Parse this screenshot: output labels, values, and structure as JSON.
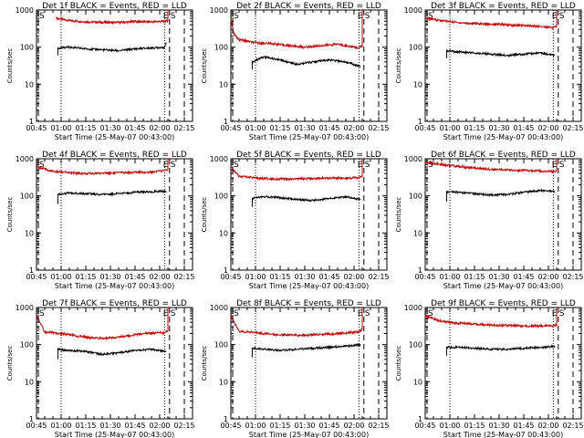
{
  "figure": {
    "background": "#ffffff",
    "events_color": "#000000",
    "lld_color": "#cc0000"
  },
  "chart_data": [
    {
      "type": "line",
      "title": "Det 1f BLACK = Events, RED = LLD",
      "xlabel": "Start Time (25-May-07 00:43:00)",
      "ylabel": "Counts/sec",
      "x_ticks": [
        "00:45",
        "01:00",
        "01:15",
        "01:30",
        "01:45",
        "02:00",
        "02:15"
      ],
      "y_ticks": [
        "1",
        "10",
        "100",
        "1000"
      ],
      "y_scale": "log",
      "ylim": [
        1,
        1000
      ],
      "markers": [
        "E",
        "S"
      ],
      "series": [
        {
          "name": "LLD",
          "color": "red",
          "x": [
            "00:57",
            "01:05",
            "01:15",
            "01:25",
            "01:35",
            "01:45",
            "01:55",
            "02:03",
            "02:05",
            "02:05"
          ],
          "y": [
            600,
            520,
            480,
            470,
            460,
            490,
            480,
            500,
            520,
            1000
          ]
        },
        {
          "name": "Events",
          "color": "black",
          "x": [
            "00:58",
            "00:58",
            "01:05",
            "01:15",
            "01:25",
            "01:35",
            "01:45",
            "01:55",
            "02:03",
            "02:04"
          ],
          "y": [
            60,
            95,
            100,
            90,
            85,
            80,
            90,
            95,
            100,
            135
          ]
        }
      ]
    },
    {
      "type": "line",
      "title": "Det 2f BLACK = Events, RED = LLD",
      "xlabel": "Start Time (25-May-07 00:43:00)",
      "ylabel": "Counts/sec",
      "x_ticks": [
        "00:45",
        "01:00",
        "01:15",
        "01:30",
        "01:45",
        "02:00",
        "02:15"
      ],
      "y_ticks": [
        "1",
        "10",
        "100",
        "1000"
      ],
      "y_scale": "log",
      "ylim": [
        1,
        1000
      ],
      "markers": [
        "E",
        "S"
      ],
      "series": [
        {
          "name": "LLD",
          "color": "red",
          "x": [
            "00:45",
            "00:47",
            "00:50",
            "01:00",
            "01:10",
            "01:20",
            "01:30",
            "01:40",
            "01:50",
            "02:03",
            "02:05",
            "02:05"
          ],
          "y": [
            600,
            220,
            160,
            130,
            125,
            110,
            100,
            110,
            120,
            95,
            110,
            1000
          ]
        },
        {
          "name": "Events",
          "color": "black",
          "x": [
            "00:58",
            "00:58",
            "01:05",
            "01:15",
            "01:25",
            "01:35",
            "01:45",
            "01:55",
            "02:04"
          ],
          "y": [
            25,
            40,
            55,
            45,
            35,
            40,
            45,
            40,
            30
          ]
        }
      ]
    },
    {
      "type": "line",
      "title": "Det 3f BLACK = Events, RED = LLD",
      "xlabel": "Start Time (25-May-07 00:43:00)",
      "ylabel": "Counts/sec",
      "x_ticks": [
        "00:45",
        "01:00",
        "01:15",
        "01:30",
        "01:45",
        "02:00",
        "02:15"
      ],
      "y_ticks": [
        "1",
        "10",
        "100",
        "1000"
      ],
      "y_scale": "log",
      "ylim": [
        1,
        1000
      ],
      "markers": [
        "E",
        "S"
      ],
      "series": [
        {
          "name": "LLD",
          "color": "red",
          "x": [
            "00:45",
            "00:55",
            "01:05",
            "01:15",
            "01:25",
            "01:35",
            "01:45",
            "01:55",
            "02:03",
            "02:05",
            "02:05"
          ],
          "y": [
            600,
            520,
            460,
            430,
            420,
            400,
            380,
            360,
            340,
            360,
            1000
          ]
        },
        {
          "name": "Events",
          "color": "black",
          "x": [
            "00:58",
            "00:58",
            "01:05",
            "01:15",
            "01:25",
            "01:35",
            "01:45",
            "01:55",
            "02:04"
          ],
          "y": [
            50,
            80,
            75,
            70,
            65,
            60,
            65,
            70,
            60
          ]
        }
      ]
    },
    {
      "type": "line",
      "title": "Det 4f BLACK = Events, RED = LLD",
      "xlabel": "Start Time (25-May-07 00:43:00)",
      "ylabel": "Counts/sec",
      "x_ticks": [
        "00:45",
        "01:00",
        "01:15",
        "01:30",
        "01:45",
        "02:00",
        "02:15"
      ],
      "y_ticks": [
        "1",
        "10",
        "100",
        "1000"
      ],
      "y_scale": "log",
      "ylim": [
        1,
        1000
      ],
      "markers": [
        "E",
        "S"
      ],
      "series": [
        {
          "name": "LLD",
          "color": "red",
          "x": [
            "00:45",
            "00:55",
            "01:05",
            "01:15",
            "01:25",
            "01:35",
            "01:45",
            "01:55",
            "02:03",
            "02:05",
            "02:05"
          ],
          "y": [
            620,
            450,
            420,
            400,
            410,
            420,
            430,
            440,
            480,
            520,
            1000
          ]
        },
        {
          "name": "Events",
          "color": "black",
          "x": [
            "00:58",
            "00:58",
            "01:05",
            "01:15",
            "01:25",
            "01:35",
            "01:45",
            "01:55",
            "02:04"
          ],
          "y": [
            60,
            110,
            120,
            115,
            110,
            115,
            125,
            130,
            135
          ]
        }
      ]
    },
    {
      "type": "line",
      "title": "Det 5f BLACK = Events, RED = LLD",
      "xlabel": "Start Time (25-May-07 00:43:00)",
      "ylabel": "Counts/sec",
      "x_ticks": [
        "00:45",
        "01:00",
        "01:15",
        "01:30",
        "01:45",
        "02:00",
        "02:15"
      ],
      "y_ticks": [
        "1",
        "10",
        "100",
        "1000"
      ],
      "y_scale": "log",
      "ylim": [
        1,
        1000
      ],
      "markers": [
        "E",
        "S"
      ],
      "series": [
        {
          "name": "LLD",
          "color": "red",
          "x": [
            "00:45",
            "00:50",
            "01:00",
            "01:10",
            "01:20",
            "01:30",
            "01:40",
            "01:50",
            "02:03",
            "02:05",
            "02:05"
          ],
          "y": [
            600,
            340,
            300,
            290,
            280,
            290,
            300,
            300,
            310,
            330,
            1000
          ]
        },
        {
          "name": "Events",
          "color": "black",
          "x": [
            "00:58",
            "00:58",
            "01:05",
            "01:15",
            "01:25",
            "01:35",
            "01:45",
            "01:55",
            "02:04"
          ],
          "y": [
            50,
            85,
            95,
            90,
            80,
            75,
            85,
            95,
            80
          ]
        }
      ]
    },
    {
      "type": "line",
      "title": "Det 6f BLACK = Events, RED = LLD",
      "xlabel": "Start Time (25-May-07 00:43:00)",
      "ylabel": "Counts/sec",
      "x_ticks": [
        "00:45",
        "01:00",
        "01:15",
        "01:30",
        "01:45",
        "02:00",
        "02:15"
      ],
      "y_ticks": [
        "1",
        "10",
        "100",
        "1000"
      ],
      "y_scale": "log",
      "ylim": [
        1,
        1000
      ],
      "markers": [
        "E",
        "S"
      ],
      "series": [
        {
          "name": "LLD",
          "color": "red",
          "x": [
            "00:45",
            "00:55",
            "01:05",
            "01:15",
            "01:25",
            "01:35",
            "01:45",
            "01:55",
            "02:03",
            "02:05",
            "02:05"
          ],
          "y": [
            800,
            700,
            620,
            560,
            520,
            500,
            480,
            470,
            450,
            480,
            1000
          ]
        },
        {
          "name": "Events",
          "color": "black",
          "x": [
            "00:58",
            "00:58",
            "01:05",
            "01:15",
            "01:25",
            "01:35",
            "01:45",
            "01:55",
            "02:04"
          ],
          "y": [
            70,
            130,
            125,
            115,
            105,
            110,
            125,
            140,
            130
          ]
        }
      ]
    },
    {
      "type": "line",
      "title": "Det 7f BLACK = Events, RED = LLD",
      "xlabel": "Start Time (25-May-07 00:43:00)",
      "ylabel": "Counts/sec",
      "x_ticks": [
        "00:45",
        "01:00",
        "01:15",
        "01:30",
        "01:45",
        "02:00",
        "02:15"
      ],
      "y_ticks": [
        "1",
        "10",
        "100",
        "1000"
      ],
      "y_scale": "log",
      "ylim": [
        1,
        1000
      ],
      "markers": [
        "E",
        "S"
      ],
      "series": [
        {
          "name": "LLD",
          "color": "red",
          "x": [
            "00:45",
            "00:50",
            "01:00",
            "01:10",
            "01:20",
            "01:30",
            "01:40",
            "01:50",
            "02:03",
            "02:05",
            "02:05"
          ],
          "y": [
            600,
            220,
            200,
            170,
            150,
            150,
            170,
            200,
            210,
            230,
            1000
          ]
        },
        {
          "name": "Events",
          "color": "black",
          "x": [
            "00:58",
            "00:58",
            "01:05",
            "01:15",
            "01:25",
            "01:35",
            "01:45",
            "01:55",
            "02:04"
          ],
          "y": [
            40,
            75,
            70,
            65,
            55,
            60,
            70,
            75,
            65
          ]
        }
      ]
    },
    {
      "type": "line",
      "title": "Det 8f BLACK = Events, RED = LLD",
      "xlabel": "Start Time (25-May-07 00:43:00)",
      "ylabel": "Counts/sec",
      "x_ticks": [
        "00:45",
        "01:00",
        "01:15",
        "01:30",
        "01:45",
        "02:00",
        "02:15"
      ],
      "y_ticks": [
        "1",
        "10",
        "100",
        "1000"
      ],
      "y_scale": "log",
      "ylim": [
        1,
        1000
      ],
      "markers": [
        "E",
        "S"
      ],
      "series": [
        {
          "name": "LLD",
          "color": "red",
          "x": [
            "00:45",
            "00:50",
            "01:00",
            "01:10",
            "01:20",
            "01:30",
            "01:40",
            "01:50",
            "02:03",
            "02:05",
            "02:05"
          ],
          "y": [
            600,
            230,
            210,
            190,
            180,
            180,
            190,
            200,
            220,
            260,
            1000
          ]
        },
        {
          "name": "Events",
          "color": "black",
          "x": [
            "00:58",
            "00:58",
            "01:05",
            "01:15",
            "01:25",
            "01:35",
            "01:45",
            "01:55",
            "02:04"
          ],
          "y": [
            45,
            80,
            75,
            70,
            75,
            80,
            85,
            90,
            100
          ]
        }
      ]
    },
    {
      "type": "line",
      "title": "Det 9f BLACK = Events, RED = LLD",
      "xlabel": "Start Time (25-May-07 00:43:00)",
      "ylabel": "Counts/sec",
      "x_ticks": [
        "00:45",
        "01:00",
        "01:15",
        "01:30",
        "01:45",
        "02:00",
        "02:15"
      ],
      "y_ticks": [
        "1",
        "10",
        "100",
        "1000"
      ],
      "y_scale": "log",
      "ylim": [
        1,
        1000
      ],
      "markers": [
        "E",
        "S"
      ],
      "series": [
        {
          "name": "LLD",
          "color": "red",
          "x": [
            "00:45",
            "00:55",
            "01:05",
            "01:15",
            "01:25",
            "01:35",
            "01:45",
            "01:55",
            "02:03",
            "02:05",
            "02:05"
          ],
          "y": [
            600,
            420,
            380,
            360,
            340,
            330,
            320,
            320,
            320,
            340,
            1000
          ]
        },
        {
          "name": "Events",
          "color": "black",
          "x": [
            "00:58",
            "00:58",
            "01:05",
            "01:15",
            "01:25",
            "01:35",
            "01:45",
            "01:55",
            "02:04"
          ],
          "y": [
            50,
            85,
            85,
            80,
            75,
            75,
            80,
            85,
            90
          ]
        }
      ]
    }
  ]
}
